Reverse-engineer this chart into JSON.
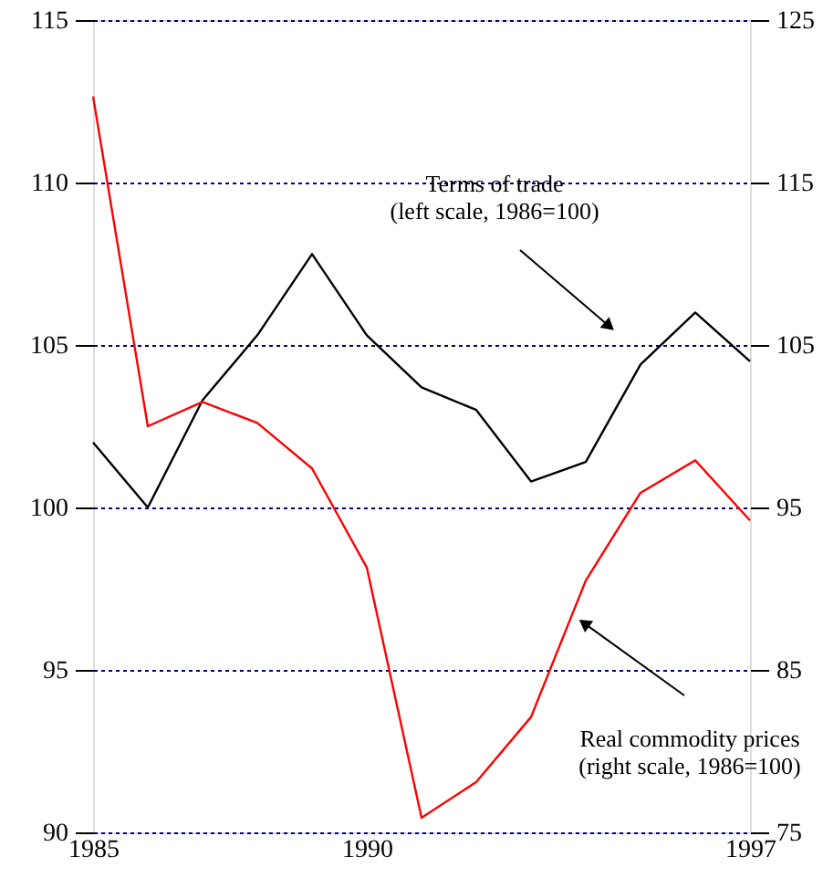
{
  "chart_data": {
    "type": "line",
    "x": [
      1985,
      1986,
      1987,
      1988,
      1989,
      1990,
      1991,
      1992,
      1993,
      1994,
      1995,
      1996,
      1997
    ],
    "xlim": [
      1985,
      1997
    ],
    "xticks": [
      1985,
      1990,
      1997
    ],
    "ylim": [
      90,
      115
    ],
    "yticks": [
      90,
      95,
      100,
      105,
      110,
      115
    ],
    "y2lim": [
      75,
      125
    ],
    "y2ticks": [
      75,
      85,
      95,
      105,
      115,
      125
    ],
    "grid": "y",
    "line_style": "solid",
    "marker": "none",
    "series": [
      {
        "color": "#000000",
        "values": [
          102.0,
          100.0,
          103.3,
          105.3,
          107.8,
          105.3,
          103.7,
          103.0,
          100.8,
          101.4,
          104.4,
          106.0,
          104.5
        ]
      },
      {
        "color": "#ff0000",
        "axis": "y2",
        "values": [
          120.3,
          100.0,
          101.5,
          100.2,
          97.4,
          91.3,
          75.9,
          78.1,
          82.1,
          90.5,
          95.9,
          97.9,
          94.2
        ]
      }
    ],
    "annotations": [
      "Terms of trade\n(left scale, 1986=100)",
      {
        "text": "Real commodity prices\n(right scale, 1986=100)",
        "x": 1994,
        "y": 96.4
      }
    ]
  }
}
